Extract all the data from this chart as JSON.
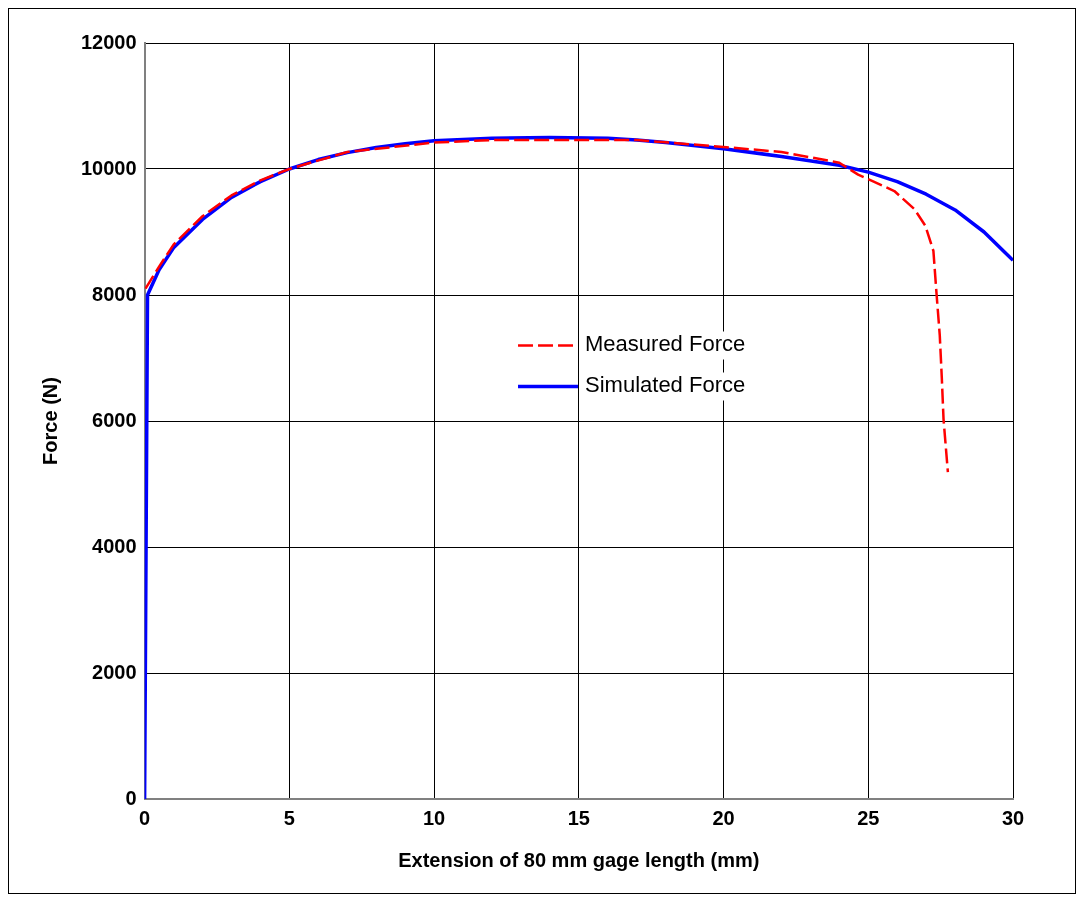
{
  "chart_data": {
    "type": "line",
    "xlabel": "Extension of 80 mm gage length (mm)",
    "ylabel": "Force (N)",
    "xlim": [
      0,
      30
    ],
    "xticks": [
      0,
      5,
      10,
      15,
      20,
      25,
      30
    ],
    "ylim": [
      0,
      12000
    ],
    "yticks": [
      0,
      2000,
      4000,
      6000,
      8000,
      10000,
      12000
    ],
    "grid": true,
    "legend": "right",
    "marker": "none",
    "series": [
      {
        "name": "Measured Force",
        "color": "#ff0000",
        "line_style": "dashed",
        "x": [
          0.03,
          0.5,
          1,
          2,
          3,
          4,
          5,
          7,
          10,
          12,
          15,
          17,
          20,
          22,
          24,
          24.65,
          25.9,
          26.6,
          26.97,
          27.25,
          27.36,
          27.47,
          27.54,
          27.6,
          27.75
        ],
        "values": [
          8100,
          8450,
          8800,
          9250,
          9580,
          9820,
          10000,
          10270,
          10420,
          10460,
          10460,
          10460,
          10350,
          10270,
          10100,
          9910,
          9650,
          9360,
          9100,
          8700,
          8010,
          7360,
          6690,
          6030,
          5190
        ]
      },
      {
        "name": "Simulated Force",
        "color": "#0000ff",
        "line_style": "solid",
        "x": [
          0,
          0.1,
          0.5,
          1,
          2,
          3,
          4,
          5,
          6,
          7,
          8,
          9,
          10,
          12,
          14,
          16,
          17,
          18,
          20,
          22,
          24,
          25,
          26,
          27,
          28,
          29,
          30
        ],
        "values": [
          0,
          8000,
          8400,
          8750,
          9200,
          9550,
          9800,
          10000,
          10150,
          10260,
          10340,
          10400,
          10450,
          10490,
          10500,
          10490,
          10460,
          10420,
          10320,
          10200,
          10060,
          9950,
          9800,
          9600,
          9350,
          9000,
          8550
        ]
      }
    ]
  }
}
